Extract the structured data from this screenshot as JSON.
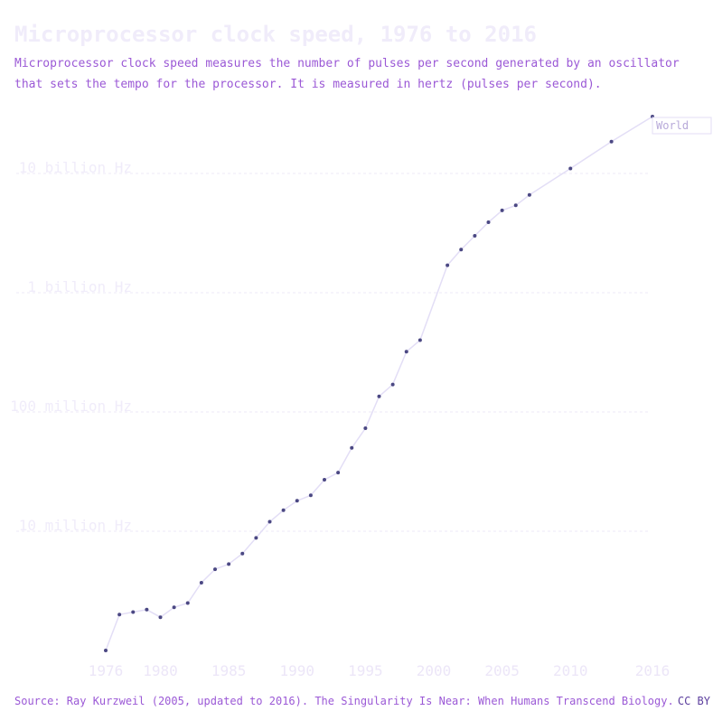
{
  "header": {
    "title": "Microprocessor clock speed, 1976 to 2016",
    "subtitle": "Microprocessor clock speed measures the number of pulses per second generated by an oscillator that sets the tempo for the processor. It is measured in hertz (pulses per second)."
  },
  "footer": {
    "source": "Source: Ray Kurzweil (2005, updated to 2016). The Singularity Is Near: When Humans Transcend Biology.",
    "license": "CC BY"
  },
  "colors": {
    "line": "#e3def6",
    "point": "#4b4883",
    "grid": "#ece9f7",
    "legend_border": "#e3def6"
  },
  "chart_data": {
    "type": "line",
    "title": "Microprocessor clock speed, 1976 to 2016",
    "xlabel": "",
    "ylabel": "",
    "y_scale": "log",
    "xlim": [
      1976,
      2016
    ],
    "ylim": [
      1000000,
      30000000000
    ],
    "grid": true,
    "legend_position": "right",
    "x_ticks": [
      {
        "value": 1976,
        "label": "1976"
      },
      {
        "value": 1980,
        "label": "1980"
      },
      {
        "value": 1985,
        "label": "1985"
      },
      {
        "value": 1990,
        "label": "1990"
      },
      {
        "value": 1995,
        "label": "1995"
      },
      {
        "value": 2000,
        "label": "2000"
      },
      {
        "value": 2005,
        "label": "2005"
      },
      {
        "value": 2010,
        "label": "2010"
      },
      {
        "value": 2016,
        "label": "2016"
      }
    ],
    "y_ticks": [
      {
        "value": 10000000,
        "label": "10 million Hz"
      },
      {
        "value": 100000000,
        "label": "100 million Hz"
      },
      {
        "value": 1000000000,
        "label": "1 billion Hz"
      },
      {
        "value": 10000000000,
        "label": "10 billion Hz"
      }
    ],
    "series": [
      {
        "name": "World",
        "x": [
          1976,
          1977,
          1978,
          1979,
          1980,
          1981,
          1982,
          1983,
          1984,
          1985,
          1986,
          1987,
          1988,
          1989,
          1990,
          1991,
          1992,
          1993,
          1994,
          1995,
          1996,
          1997,
          1998,
          1999,
          2001,
          2002,
          2003,
          2004,
          2005,
          2006,
          2007,
          2010,
          2013,
          2016
        ],
        "y": [
          1000000,
          2000000,
          2100000,
          2200000,
          1900000,
          2300000,
          2500000,
          3700000,
          4800000,
          5300000,
          6500000,
          8800000,
          12000000,
          15000000,
          18000000,
          20000000,
          27000000,
          31000000,
          50000000,
          73000000,
          135000000,
          170000000,
          320000000,
          400000000,
          1700000000,
          2300000000,
          3000000000,
          3900000000,
          4900000000,
          5400000000,
          6600000000,
          11000000000,
          18500000000,
          30000000000
        ]
      }
    ]
  }
}
